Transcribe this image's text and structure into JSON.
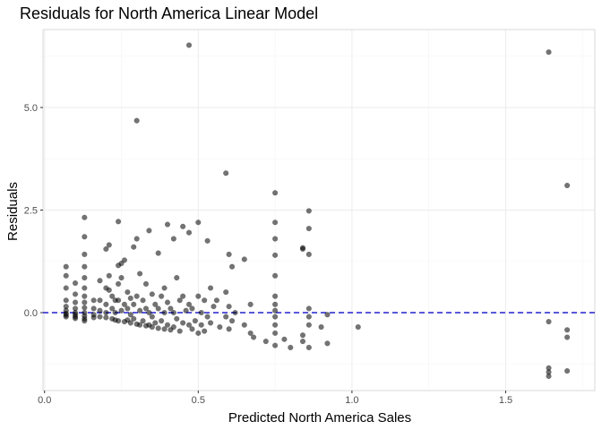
{
  "chart_data": {
    "type": "scatter",
    "title": "Residuals for North America Linear Model",
    "xlabel": "Predicted North America Sales",
    "ylabel": "Residuals",
    "xlim": [
      -0.005,
      1.79
    ],
    "ylim": [
      -1.9,
      6.9
    ],
    "x_ticks": [
      0.0,
      0.5,
      1.0,
      1.5
    ],
    "x_tick_labels": [
      "0.0",
      "0.5",
      "1.0",
      "1.5"
    ],
    "y_ticks": [
      0.0,
      2.5,
      5.0
    ],
    "y_tick_labels": [
      "0.0",
      "2.5",
      "5.0"
    ],
    "reference_line": {
      "y": 0,
      "style": "dashed",
      "color": "#2222cc"
    },
    "grid": true,
    "point_color": "#000000",
    "points": [
      [
        0.07,
        1.12
      ],
      [
        0.07,
        0.9
      ],
      [
        0.07,
        0.6
      ],
      [
        0.07,
        0.3
      ],
      [
        0.07,
        0.15
      ],
      [
        0.07,
        0.05
      ],
      [
        0.07,
        -0.02
      ],
      [
        0.07,
        -0.06
      ],
      [
        0.07,
        -0.1
      ],
      [
        0.1,
        0.72
      ],
      [
        0.1,
        0.45
      ],
      [
        0.1,
        0.25
      ],
      [
        0.1,
        0.1
      ],
      [
        0.1,
        0.0
      ],
      [
        0.1,
        -0.05
      ],
      [
        0.1,
        -0.1
      ],
      [
        0.1,
        -0.14
      ],
      [
        0.13,
        2.32
      ],
      [
        0.13,
        1.85
      ],
      [
        0.13,
        1.42
      ],
      [
        0.13,
        1.12
      ],
      [
        0.13,
        0.85
      ],
      [
        0.13,
        0.6
      ],
      [
        0.13,
        0.4
      ],
      [
        0.13,
        0.25
      ],
      [
        0.13,
        0.12
      ],
      [
        0.13,
        0.0
      ],
      [
        0.13,
        -0.08
      ],
      [
        0.13,
        -0.15
      ],
      [
        0.13,
        -0.2
      ],
      [
        0.16,
        0.3
      ],
      [
        0.16,
        0.1
      ],
      [
        0.16,
        -0.05
      ],
      [
        0.16,
        -0.12
      ],
      [
        0.18,
        0.78
      ],
      [
        0.18,
        0.3
      ],
      [
        0.18,
        0.05
      ],
      [
        0.18,
        -0.1
      ],
      [
        0.2,
        1.55
      ],
      [
        0.2,
        0.6
      ],
      [
        0.2,
        0.2
      ],
      [
        0.2,
        0.0
      ],
      [
        0.2,
        -0.12
      ],
      [
        0.21,
        1.65
      ],
      [
        0.21,
        0.9
      ],
      [
        0.21,
        0.55
      ],
      [
        0.22,
        0.4
      ],
      [
        0.22,
        0.1
      ],
      [
        0.22,
        -0.15
      ],
      [
        0.23,
        0.3
      ],
      [
        0.23,
        0.0
      ],
      [
        0.23,
        -0.18
      ],
      [
        0.24,
        2.22
      ],
      [
        0.24,
        1.15
      ],
      [
        0.24,
        0.7
      ],
      [
        0.24,
        0.3
      ],
      [
        0.24,
        -0.2
      ],
      [
        0.25,
        1.2
      ],
      [
        0.25,
        0.85
      ],
      [
        0.25,
        0.05
      ],
      [
        0.26,
        1.28
      ],
      [
        0.26,
        0.2
      ],
      [
        0.26,
        -0.22
      ],
      [
        0.27,
        0.5
      ],
      [
        0.27,
        0.1
      ],
      [
        0.27,
        -0.18
      ],
      [
        0.28,
        0.35
      ],
      [
        0.28,
        -0.05
      ],
      [
        0.28,
        -0.25
      ],
      [
        0.29,
        1.6
      ],
      [
        0.29,
        0.2
      ],
      [
        0.29,
        -0.15
      ],
      [
        0.3,
        4.68
      ],
      [
        0.3,
        1.8
      ],
      [
        0.3,
        0.4
      ],
      [
        0.3,
        -0.28
      ],
      [
        0.31,
        0.95
      ],
      [
        0.31,
        0.05
      ],
      [
        0.31,
        -0.3
      ],
      [
        0.32,
        0.3
      ],
      [
        0.32,
        -0.2
      ],
      [
        0.33,
        0.7
      ],
      [
        0.33,
        0.1
      ],
      [
        0.33,
        -0.32
      ],
      [
        0.34,
        2.0
      ],
      [
        0.34,
        0.0
      ],
      [
        0.34,
        -0.3
      ],
      [
        0.35,
        0.45
      ],
      [
        0.35,
        -0.1
      ],
      [
        0.35,
        -0.35
      ],
      [
        0.36,
        0.2
      ],
      [
        0.36,
        -0.25
      ],
      [
        0.37,
        1.45
      ],
      [
        0.37,
        0.1
      ],
      [
        0.37,
        -0.38
      ],
      [
        0.38,
        0.4
      ],
      [
        0.38,
        -0.2
      ],
      [
        0.39,
        0.6
      ],
      [
        0.39,
        0.0
      ],
      [
        0.39,
        -0.4
      ],
      [
        0.4,
        2.15
      ],
      [
        0.4,
        0.25
      ],
      [
        0.4,
        -0.3
      ],
      [
        0.41,
        0.1
      ],
      [
        0.41,
        -0.42
      ],
      [
        0.42,
        1.8
      ],
      [
        0.42,
        0.0
      ],
      [
        0.42,
        -0.35
      ],
      [
        0.43,
        0.85
      ],
      [
        0.43,
        -0.15
      ],
      [
        0.44,
        0.3
      ],
      [
        0.44,
        -0.45
      ],
      [
        0.45,
        2.1
      ],
      [
        0.45,
        0.4
      ],
      [
        0.45,
        -0.25
      ],
      [
        0.46,
        0.05
      ],
      [
        0.47,
        6.52
      ],
      [
        0.47,
        1.95
      ],
      [
        0.47,
        0.2
      ],
      [
        0.47,
        -0.3
      ],
      [
        0.48,
        0.1
      ],
      [
        0.48,
        -0.4
      ],
      [
        0.49,
        -0.2
      ],
      [
        0.5,
        2.2
      ],
      [
        0.5,
        0.4
      ],
      [
        0.5,
        -0.5
      ],
      [
        0.51,
        0.0
      ],
      [
        0.51,
        -0.3
      ],
      [
        0.52,
        0.3
      ],
      [
        0.52,
        -0.45
      ],
      [
        0.53,
        1.75
      ],
      [
        0.53,
        -0.1
      ],
      [
        0.54,
        0.6
      ],
      [
        0.54,
        -0.25
      ],
      [
        0.55,
        0.15
      ],
      [
        0.56,
        0.3
      ],
      [
        0.57,
        -0.35
      ],
      [
        0.59,
        3.4
      ],
      [
        0.59,
        0.5
      ],
      [
        0.59,
        -0.1
      ],
      [
        0.6,
        1.42
      ],
      [
        0.6,
        0.15
      ],
      [
        0.6,
        -0.4
      ],
      [
        0.61,
        1.12
      ],
      [
        0.61,
        -0.2
      ],
      [
        0.62,
        0.0
      ],
      [
        0.65,
        1.3
      ],
      [
        0.65,
        -0.3
      ],
      [
        0.67,
        0.2
      ],
      [
        0.67,
        -0.5
      ],
      [
        0.68,
        -0.6
      ],
      [
        0.72,
        -0.7
      ],
      [
        0.75,
        2.92
      ],
      [
        0.75,
        2.2
      ],
      [
        0.75,
        1.8
      ],
      [
        0.75,
        1.4
      ],
      [
        0.75,
        0.9
      ],
      [
        0.75,
        0.4
      ],
      [
        0.75,
        0.2
      ],
      [
        0.75,
        0.05
      ],
      [
        0.75,
        -0.1
      ],
      [
        0.75,
        -0.3
      ],
      [
        0.75,
        -0.5
      ],
      [
        0.75,
        -0.8
      ],
      [
        0.78,
        -0.65
      ],
      [
        0.8,
        -0.85
      ],
      [
        0.84,
        1.58
      ],
      [
        0.84,
        1.55
      ],
      [
        0.84,
        -0.55
      ],
      [
        0.84,
        -0.7
      ],
      [
        0.86,
        2.48
      ],
      [
        0.86,
        2.05
      ],
      [
        0.86,
        1.42
      ],
      [
        0.86,
        0.1
      ],
      [
        0.86,
        -0.1
      ],
      [
        0.86,
        -0.3
      ],
      [
        0.86,
        -0.85
      ],
      [
        0.9,
        -0.35
      ],
      [
        0.92,
        -0.05
      ],
      [
        0.92,
        -0.75
      ],
      [
        1.02,
        -0.35
      ],
      [
        1.64,
        6.35
      ],
      [
        1.64,
        -0.22
      ],
      [
        1.64,
        -1.35
      ],
      [
        1.64,
        -1.45
      ],
      [
        1.64,
        -1.55
      ],
      [
        1.7,
        3.1
      ],
      [
        1.7,
        -0.42
      ],
      [
        1.7,
        -0.6
      ],
      [
        1.7,
        -1.42
      ]
    ]
  }
}
